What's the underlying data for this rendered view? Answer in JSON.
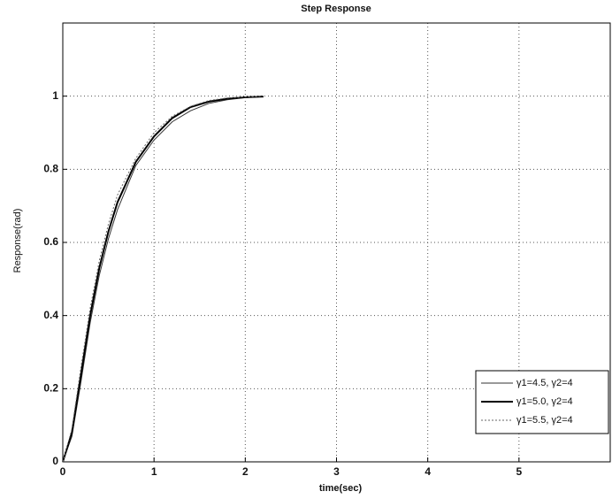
{
  "chart_data": {
    "type": "line",
    "title": "Step Response",
    "x_label": "time(sec)",
    "y_label": "Response(rad)",
    "x": [
      0,
      0.1,
      0.2,
      0.3,
      0.4,
      0.5,
      0.6,
      0.8,
      1.0,
      1.2,
      1.4,
      1.6,
      1.8,
      2.0,
      2.2
    ],
    "series": [
      {
        "name": "γ1=4.5, γ2=4",
        "color": "#333333",
        "values": [
          0,
          0.07,
          0.22,
          0.38,
          0.51,
          0.61,
          0.69,
          0.81,
          0.88,
          0.93,
          0.96,
          0.98,
          0.99,
          0.996,
          0.999
        ]
      },
      {
        "name": "γ1=5.0, γ2=4",
        "color": "#000000",
        "values": [
          0,
          0.08,
          0.24,
          0.4,
          0.53,
          0.63,
          0.71,
          0.82,
          0.89,
          0.94,
          0.97,
          0.985,
          0.993,
          0.997,
          0.999
        ]
      },
      {
        "name": "γ1=5.5, γ2=4",
        "color": "#666666",
        "values": [
          0,
          0.09,
          0.26,
          0.42,
          0.55,
          0.65,
          0.73,
          0.83,
          0.9,
          0.945,
          0.972,
          0.988,
          0.995,
          0.998,
          1.0
        ]
      }
    ],
    "xlim": [
      0,
      6
    ],
    "ylim": [
      0,
      1.2
    ],
    "xticks": [
      0,
      1,
      2,
      3,
      4,
      5
    ],
    "yticks": [
      0,
      0.2,
      0.4,
      0.6,
      0.8,
      1
    ],
    "grid": true,
    "legend": "lower right"
  }
}
